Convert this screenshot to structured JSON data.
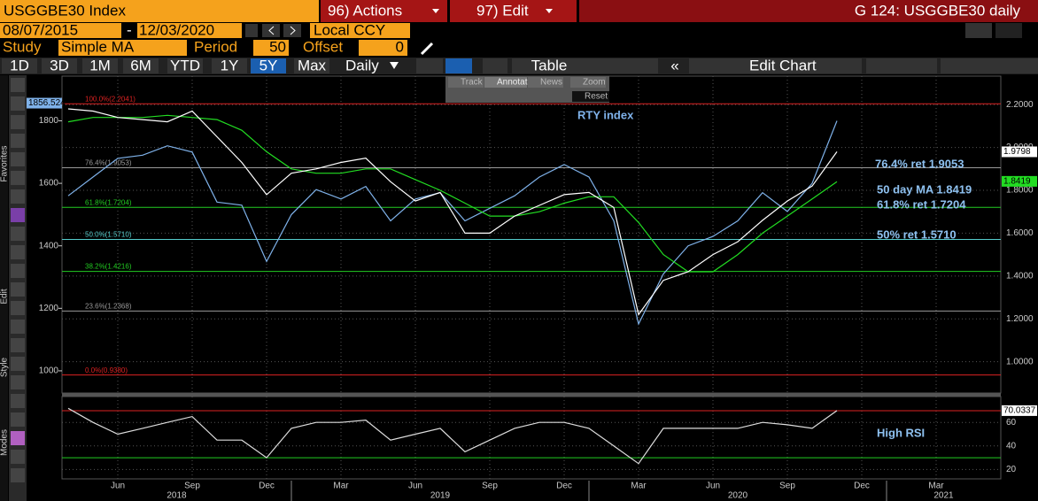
{
  "header": {
    "security": "USGGBE30 Index",
    "actions": "96) Actions",
    "edit": "97) Edit",
    "chart_name": "G 124: USGGBE30 daily"
  },
  "date_range": {
    "start": "08/07/2015",
    "end": "12/03/2020",
    "currency": "Local CCY"
  },
  "study": {
    "label": "Study",
    "name": "Simple MA",
    "period_label": "Period",
    "period": 50,
    "offset_label": "Offset",
    "offset": 0
  },
  "periods": [
    "1D",
    "3D",
    "1M",
    "6M",
    "YTD",
    "1Y",
    "5Y",
    "Max"
  ],
  "selected_period": "5Y",
  "frequency": "Daily",
  "table": "Table",
  "edit_chart": "Edit Chart",
  "chart_tools": [
    "Track",
    "Annotate",
    "News",
    "Zoom",
    "Reset"
  ],
  "sidebar_labels": [
    "Favorites",
    "Edit",
    "Style",
    "Modes"
  ],
  "chart_data": {
    "type": "line",
    "categories": [
      null,
      null,
      "Jun",
      null,
      null,
      "Sep",
      null,
      null,
      "Dec",
      null,
      null,
      "Mar",
      null,
      null,
      "Jun",
      null,
      null,
      "Sep",
      null,
      null,
      "Dec",
      null,
      null,
      "Mar",
      null,
      null,
      "Jun",
      null,
      null,
      "Sep",
      null,
      null,
      "Dec",
      null,
      null,
      "Mar",
      null,
      null
    ],
    "years": [
      "2018",
      "2019",
      "2020",
      "2021"
    ],
    "ylim": [
      929,
      1943
    ],
    "yticks": [
      1000,
      1200,
      1400,
      1600,
      1800
    ],
    "y2lim": [
      0.854,
      2.333
    ],
    "y2ticks": [
      {
        "value": 1.0,
        "label": "1.0000"
      },
      {
        "value": 1.2,
        "label": "1.2000"
      },
      {
        "value": 1.4,
        "label": "1.4000"
      },
      {
        "value": 1.6,
        "label": "1.6000"
      },
      {
        "value": 1.8,
        "label": "1.8000"
      },
      {
        "value": 2.0,
        "label": "2.0000"
      },
      {
        "value": 2.2,
        "label": "2.2000"
      }
    ],
    "grid": true,
    "series": [
      {
        "name": "USGGBE30",
        "color": "#ffffff",
        "axis": "y2",
        "values": [
          2.18,
          2.17,
          2.14,
          2.13,
          2.12,
          2.17,
          2.05,
          1.93,
          1.78,
          1.88,
          1.9,
          1.93,
          1.95,
          1.84,
          1.75,
          1.79,
          1.6,
          1.6,
          1.68,
          1.73,
          1.78,
          1.79,
          1.72,
          1.22,
          1.38,
          1.42,
          1.5,
          1.56,
          1.66,
          1.75,
          1.82,
          1.98,
          null,
          null,
          null,
          null,
          null,
          null
        ]
      },
      {
        "name": "RTY index",
        "color": "#7fb2ea",
        "values": [
          1560,
          1620,
          1680,
          1690,
          1720,
          1700,
          1540,
          1530,
          1350,
          1500,
          1580,
          1550,
          1590,
          1480,
          1550,
          1570,
          1480,
          1520,
          1560,
          1620,
          1660,
          1620,
          1480,
          1150,
          1310,
          1400,
          1430,
          1480,
          1570,
          1510,
          1600,
          1800,
          null,
          null,
          null,
          null,
          null,
          null
        ]
      },
      {
        "name": "50 day MA",
        "color": "#22dd22",
        "axis": "y2",
        "values": [
          2.12,
          2.14,
          2.14,
          2.14,
          2.15,
          2.14,
          2.13,
          2.08,
          1.98,
          1.9,
          1.88,
          1.88,
          1.9,
          1.9,
          1.85,
          1.8,
          1.74,
          1.68,
          1.68,
          1.7,
          1.74,
          1.77,
          1.77,
          1.65,
          1.5,
          1.42,
          1.42,
          1.5,
          1.6,
          1.68,
          1.76,
          1.84,
          null,
          null,
          null,
          null,
          null,
          null
        ]
      }
    ],
    "levels": [
      {
        "label": "100.0%(2.2041)",
        "value": 2.2041,
        "color": "#dd2222"
      },
      {
        "label": "76.4%(1.9053)",
        "value": 1.9053,
        "color": "#999999"
      },
      {
        "label": "61.8%(1.7204)",
        "value": 1.7204,
        "color": "#22cc22"
      },
      {
        "label": "50.0%(1.5710)",
        "value": 1.571,
        "color": "#55cccc"
      },
      {
        "label": "38.2%(1.4216)",
        "value": 1.4216,
        "color": "#22cc22"
      },
      {
        "label": "23.6%(1.2368)",
        "value": 1.2368,
        "color": "#999999"
      },
      {
        "label": "0.0%(0.9380)",
        "value": 0.938,
        "color": "#dd2222"
      }
    ],
    "annotations": [
      "RTY index",
      "76.4% ret 1.9053",
      "50 day MA 1.8419",
      "61.8% ret 1.7204",
      "50% ret 1.5710"
    ],
    "last_tags": [
      {
        "label": "1856.524",
        "value": 1856.524,
        "color": "#7fb2ea"
      },
      {
        "label": "1.9798",
        "value": 1.9798,
        "color": "#ffffff",
        "axis": "y2"
      },
      {
        "label": "1.8419",
        "value": 1.8419,
        "color": "#22dd22",
        "axis": "y2"
      }
    ],
    "rsi": {
      "annotation": "High RSI",
      "ylim": [
        12,
        82
      ],
      "yticks": [
        20,
        40,
        60
      ],
      "upper": 70,
      "lower": 30,
      "last_label": "70.0337",
      "last_value": 70.0337,
      "values": [
        72,
        60,
        50,
        55,
        60,
        65,
        45,
        45,
        30,
        55,
        60,
        60,
        62,
        45,
        50,
        55,
        35,
        45,
        55,
        60,
        60,
        55,
        40,
        25,
        55,
        55,
        55,
        55,
        60,
        58,
        55,
        70.0337,
        null,
        null,
        null,
        null,
        null,
        null
      ]
    }
  }
}
